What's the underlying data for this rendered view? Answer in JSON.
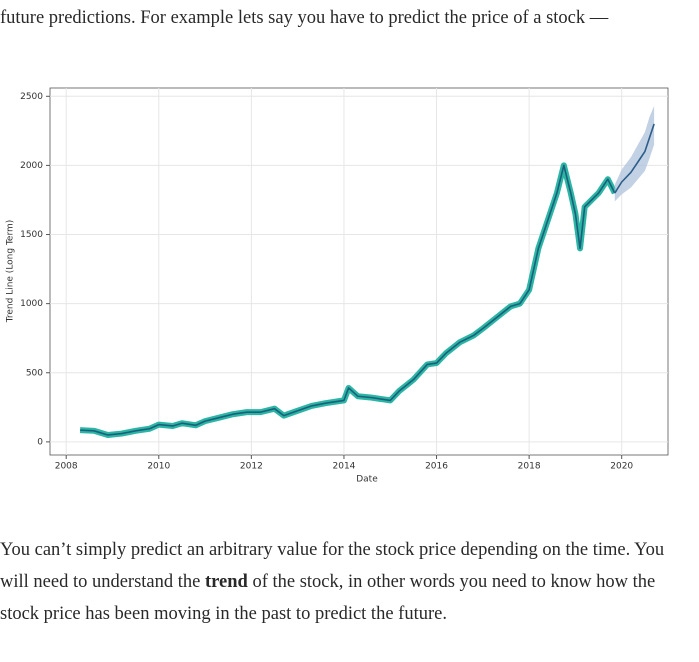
{
  "top_paragraph": "future predictions. For example lets say you have to predict the price of a stock —",
  "chart_data": {
    "type": "line",
    "x_label": "Date",
    "y_label": "Trend Line (Long Term)",
    "xlim": [
      2007.65,
      2021.0
    ],
    "ylim": [
      -95,
      2560
    ],
    "xticks": [
      2008,
      2010,
      2012,
      2014,
      2016,
      2018,
      2020
    ],
    "yticks": [
      0,
      500,
      1000,
      1500,
      2000,
      2500
    ],
    "grid": true,
    "series": [
      {
        "color": "#1b5f7a",
        "glow": "#2bb5a5",
        "x": [
          2008.3,
          2008.6,
          2008.9,
          2009.2,
          2009.5,
          2009.8,
          2010.0,
          2010.3,
          2010.5,
          2010.8,
          2011.0,
          2011.3,
          2011.6,
          2011.9,
          2012.2,
          2012.5,
          2012.7,
          2013.0,
          2013.3,
          2013.6,
          2014.0,
          2014.1,
          2014.3,
          2014.6,
          2015.0,
          2015.2,
          2015.5,
          2015.8,
          2016.0,
          2016.2,
          2016.5,
          2016.8,
          2017.0,
          2017.3,
          2017.6,
          2017.8,
          2018.0,
          2018.2,
          2018.4,
          2018.6,
          2018.75,
          2018.9,
          2019.0,
          2019.1,
          2019.2,
          2019.5,
          2019.7,
          2019.85
        ],
        "values": [
          85,
          80,
          50,
          60,
          80,
          95,
          125,
          115,
          135,
          120,
          150,
          175,
          200,
          215,
          215,
          240,
          190,
          225,
          260,
          280,
          300,
          390,
          330,
          320,
          300,
          370,
          450,
          560,
          570,
          640,
          720,
          770,
          820,
          900,
          980,
          1000,
          1100,
          1400,
          1600,
          1800,
          2000,
          1800,
          1650,
          1400,
          1700,
          1800,
          1900,
          1800
        ]
      },
      {
        "color": "#2c5d88",
        "band_color": "#b4c6de",
        "x": [
          2019.85,
          2020.0,
          2020.2,
          2020.4,
          2020.5,
          2020.6,
          2020.7
        ],
        "values": [
          1800,
          1880,
          1950,
          2050,
          2100,
          2200,
          2300
        ],
        "lower": [
          1740,
          1790,
          1840,
          1920,
          1960,
          2050,
          2150
        ],
        "upper": [
          1860,
          1970,
          2060,
          2180,
          2240,
          2350,
          2430
        ]
      }
    ]
  },
  "bottom_paragraph": [
    "You can’t simply predict an arbitrary value for the stock price depending on the time. You will need to understand the ",
    "trend",
    " of the stock, in other words you need to know how the stock price has been moving in the past to predict the future."
  ]
}
